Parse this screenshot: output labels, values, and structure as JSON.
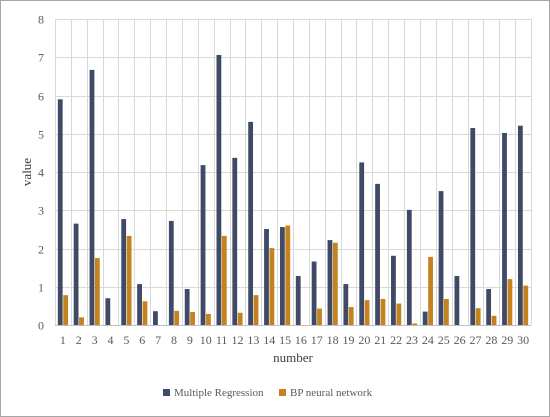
{
  "chart_data": {
    "type": "bar",
    "categories": [
      "1",
      "2",
      "3",
      "4",
      "5",
      "6",
      "7",
      "8",
      "9",
      "10",
      "11",
      "12",
      "13",
      "14",
      "15",
      "16",
      "17",
      "18",
      "19",
      "20",
      "21",
      "22",
      "23",
      "24",
      "25",
      "26",
      "27",
      "28",
      "29",
      "30"
    ],
    "series": [
      {
        "name": "Multiple Regression",
        "color": "#3e4a66",
        "values": [
          5.9,
          2.65,
          6.67,
          0.7,
          2.77,
          1.07,
          0.36,
          2.72,
          0.94,
          4.18,
          7.06,
          4.37,
          5.31,
          2.51,
          2.56,
          1.28,
          1.66,
          2.22,
          1.07,
          4.25,
          3.69,
          1.81,
          3.01,
          0.35,
          3.5,
          1.28,
          5.15,
          0.94,
          5.02,
          5.21
        ]
      },
      {
        "name": "BP neural network",
        "color": "#c5831f",
        "values": [
          0.78,
          0.2,
          1.75,
          0,
          2.33,
          0.62,
          0,
          0.37,
          0.34,
          0.29,
          2.33,
          0.32,
          0.78,
          2.01,
          2.6,
          0,
          0.43,
          2.15,
          0.47,
          0.65,
          0.68,
          0.56,
          0.04,
          1.78,
          0.68,
          0,
          0.44,
          0.24,
          1.2,
          1.03
        ]
      }
    ],
    "xlabel": "number",
    "ylabel": "value",
    "ylim": [
      0,
      8
    ],
    "yticks": [
      0,
      1,
      2,
      3,
      4,
      5,
      6,
      7,
      8
    ],
    "grid": true,
    "legend_position": "bottom"
  }
}
